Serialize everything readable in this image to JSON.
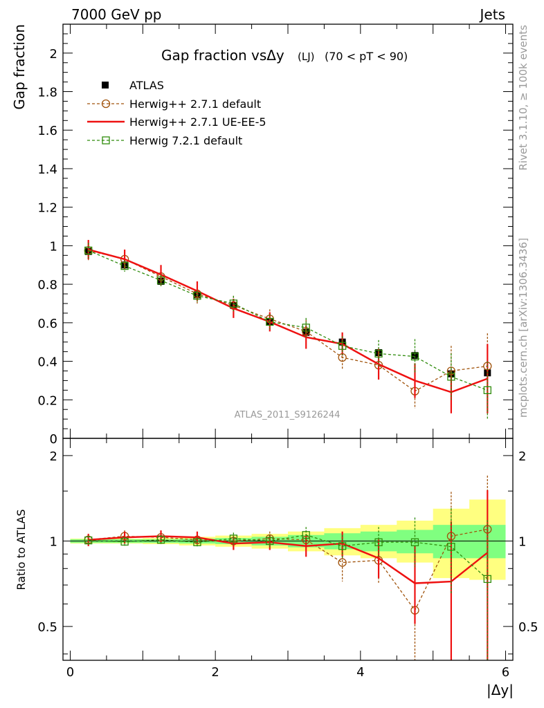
{
  "header": {
    "left": "7000 GeV pp",
    "right": "Jets"
  },
  "side_text": {
    "top": "Rivet 3.1.10, ≥ 100k events",
    "bottom": "mcplots.cern.ch [arXiv:1306.3436]"
  },
  "watermark": "ATLAS_2011_S9126244",
  "colors": {
    "atlas": "#000000",
    "herwigpp_default": "#a0520a",
    "herwigpp_ueee5": "#ee1111",
    "herwig7": "#2e8b0b",
    "band_yellow": "#ffff80",
    "band_green": "#80ff80"
  },
  "chart_data": [
    {
      "type": "line",
      "title": "Gap fraction vsΔy",
      "title_suffix": "(LJ)",
      "title_cut": "(70 < pT <  90)",
      "ylabel": "Gap fraction",
      "ylim": [
        0,
        2.15
      ],
      "yticks": [
        0,
        0.2,
        0.4,
        0.6,
        0.8,
        1,
        1.2,
        1.4,
        1.6,
        1.8,
        2
      ],
      "ytick_labels": [
        "0",
        "0.2",
        "0.4",
        "0.6",
        "0.8",
        "1",
        "1.2",
        "1.4",
        "1.6",
        "1.8",
        "2"
      ],
      "xlim": [
        -0.1,
        6.1
      ],
      "legend_position": "top-left",
      "x": [
        0.25,
        0.75,
        1.25,
        1.75,
        2.25,
        2.75,
        3.25,
        3.75,
        4.25,
        4.75,
        5.25,
        5.75
      ],
      "series": [
        {
          "name": "ATLAS",
          "style": "data",
          "values": [
            0.97,
            0.9,
            0.815,
            0.745,
            0.69,
            0.605,
            0.55,
            0.5,
            0.445,
            0.43,
            0.335,
            0.34
          ],
          "errors": [
            0.03,
            0.02,
            0.02,
            0.02,
            0.02,
            0.02,
            0.02,
            0.02,
            0.02,
            0.02,
            0.03,
            0.03
          ]
        },
        {
          "name": "Herwig++ 2.7.1 default",
          "style": "circle-dashed",
          "values": [
            0.975,
            0.93,
            0.84,
            0.75,
            0.69,
            0.62,
            0.555,
            0.42,
            0.38,
            0.245,
            0.35,
            0.375
          ],
          "errors": [
            0.05,
            0.05,
            0.05,
            0.05,
            0.05,
            0.05,
            0.06,
            0.06,
            0.08,
            0.09,
            0.13,
            0.17
          ]
        },
        {
          "name": "Herwig++ 2.7.1 UE-EE-5",
          "style": "solid",
          "values": [
            0.98,
            0.93,
            0.85,
            0.765,
            0.675,
            0.605,
            0.525,
            0.49,
            0.385,
            0.3,
            0.24,
            0.31
          ],
          "errors": [
            0.05,
            0.05,
            0.05,
            0.05,
            0.05,
            0.05,
            0.06,
            0.06,
            0.08,
            0.09,
            0.11,
            0.18
          ]
        },
        {
          "name": "Herwig 7.2.1 default",
          "style": "square-dashed",
          "values": [
            0.975,
            0.895,
            0.82,
            0.74,
            0.7,
            0.605,
            0.575,
            0.48,
            0.44,
            0.425,
            0.32,
            0.25
          ],
          "errors": [
            0.04,
            0.03,
            0.03,
            0.03,
            0.04,
            0.04,
            0.05,
            0.05,
            0.07,
            0.09,
            0.12,
            0.15
          ]
        }
      ]
    },
    {
      "type": "line",
      "ylabel": "Ratio to ATLAS",
      "xlabel": "|Δy|",
      "ylim": [
        0.38,
        2.3
      ],
      "log_y": true,
      "yticks": [
        0.5,
        1,
        2
      ],
      "ytick_labels": [
        "0.5",
        "1",
        "2"
      ],
      "xlim": [
        -0.1,
        6.1
      ],
      "xticks": [
        0,
        2,
        4,
        6
      ],
      "xtick_labels": [
        "0",
        "2",
        "4",
        "6"
      ],
      "x": [
        0.25,
        0.75,
        1.25,
        1.75,
        2.25,
        2.75,
        3.25,
        3.75,
        4.25,
        4.75,
        5.25,
        5.75
      ],
      "bands": {
        "stat_low": [
          0.985,
          0.985,
          0.985,
          0.98,
          0.975,
          0.965,
          0.95,
          0.935,
          0.92,
          0.905,
          0.87,
          0.87
        ],
        "stat_high": [
          1.015,
          1.015,
          1.015,
          1.02,
          1.025,
          1.035,
          1.05,
          1.065,
          1.08,
          1.095,
          1.14,
          1.14
        ],
        "total_low": [
          0.98,
          0.98,
          0.975,
          0.965,
          0.955,
          0.94,
          0.92,
          0.89,
          0.87,
          0.84,
          0.74,
          0.73
        ],
        "total_high": [
          1.02,
          1.02,
          1.025,
          1.035,
          1.045,
          1.06,
          1.08,
          1.11,
          1.14,
          1.18,
          1.3,
          1.4
        ]
      },
      "series": [
        {
          "name": "Herwig++ 2.7.1 default",
          "style": "circle-dashed",
          "values": [
            1.01,
            1.04,
            1.03,
            1.01,
            1.0,
            1.02,
            1.01,
            0.84,
            0.855,
            0.57,
            1.04,
            1.1
          ],
          "err_low": [
            0.05,
            0.05,
            0.05,
            0.05,
            0.05,
            0.06,
            0.08,
            0.12,
            0.15,
            0.2,
            0.4,
            0.5
          ],
          "err_high": [
            0.05,
            0.05,
            0.05,
            0.05,
            0.05,
            0.06,
            0.08,
            0.12,
            0.16,
            0.25,
            0.45,
            0.6
          ]
        },
        {
          "name": "Herwig++ 2.7.1 UE-EE-5",
          "style": "solid",
          "values": [
            1.01,
            1.03,
            1.04,
            1.03,
            0.98,
            0.99,
            0.96,
            0.98,
            0.87,
            0.71,
            0.72,
            0.91
          ],
          "err_low": [
            0.05,
            0.05,
            0.05,
            0.05,
            0.05,
            0.06,
            0.08,
            0.1,
            0.13,
            0.2,
            0.4,
            0.55
          ],
          "err_high": [
            0.05,
            0.05,
            0.05,
            0.05,
            0.05,
            0.06,
            0.08,
            0.1,
            0.14,
            0.25,
            0.45,
            0.6
          ]
        },
        {
          "name": "Herwig 7.2.1 default",
          "style": "square-dashed",
          "values": [
            1.005,
            0.995,
            1.01,
            0.99,
            1.02,
            1.0,
            1.05,
            0.96,
            0.99,
            0.99,
            0.955,
            0.735
          ],
          "err_low": [
            0.04,
            0.04,
            0.04,
            0.04,
            0.05,
            0.05,
            0.07,
            0.09,
            0.12,
            0.18,
            0.3,
            0.4
          ],
          "err_high": [
            0.04,
            0.04,
            0.04,
            0.04,
            0.05,
            0.05,
            0.07,
            0.09,
            0.13,
            0.22,
            0.35,
            0.45
          ]
        }
      ]
    }
  ]
}
